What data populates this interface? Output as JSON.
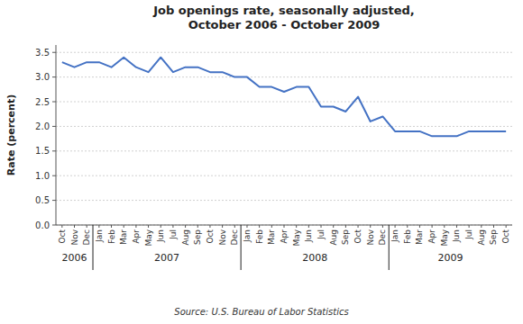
{
  "chart_data": {
    "type": "line",
    "title": "Job openings rate, seasonally adjusted,\nOctober 2006 - October 2009",
    "y_label": "Rate (percent)",
    "source": "Source:  U.S. Bureau of Labor Statistics",
    "color": "#4472C4",
    "grid": true,
    "ylim": [
      0.0,
      3.65
    ],
    "yticks": [
      {
        "value": 0.0,
        "label": "0.0"
      },
      0.5,
      {
        "value": 1.0,
        "label": "1.0"
      },
      1.5,
      {
        "value": 2.0,
        "label": "2.0"
      },
      2.5,
      {
        "value": 3.0,
        "label": "3.0"
      },
      3.5
    ],
    "categories": [
      "Oct",
      "Nov",
      "Dec",
      "Jan",
      "Feb",
      "Mar",
      "Apr",
      "May",
      "Jun",
      "Jul",
      "Aug",
      "Sep",
      "Oct",
      "Nov",
      "Dec",
      "Jan",
      "Feb",
      "Mar",
      "Apr",
      "May",
      "Jun",
      "Jul",
      "Aug",
      "Sep",
      "Oct",
      "Nov",
      "Dec",
      "Jan",
      "Feb",
      "Mar",
      "Apr",
      "May",
      "Jun",
      "Jul",
      "Aug",
      "Sep",
      "Oct"
    ],
    "values": [
      3.3,
      3.2,
      3.3,
      3.3,
      3.2,
      3.4,
      3.2,
      3.1,
      3.4,
      3.1,
      3.2,
      3.2,
      3.1,
      3.1,
      3.0,
      3.0,
      2.8,
      2.8,
      2.7,
      2.8,
      2.8,
      2.4,
      2.4,
      2.3,
      2.6,
      2.1,
      2.2,
      1.9,
      1.9,
      1.9,
      1.8,
      1.8,
      1.8,
      1.9,
      1.9,
      1.9,
      1.9
    ],
    "x_groups": [
      {
        "label": "2006",
        "size": 3
      },
      {
        "label": "2007",
        "size": 12
      },
      {
        "label": "2008",
        "size": 12
      },
      {
        "label": "2009",
        "size": 10
      }
    ]
  }
}
